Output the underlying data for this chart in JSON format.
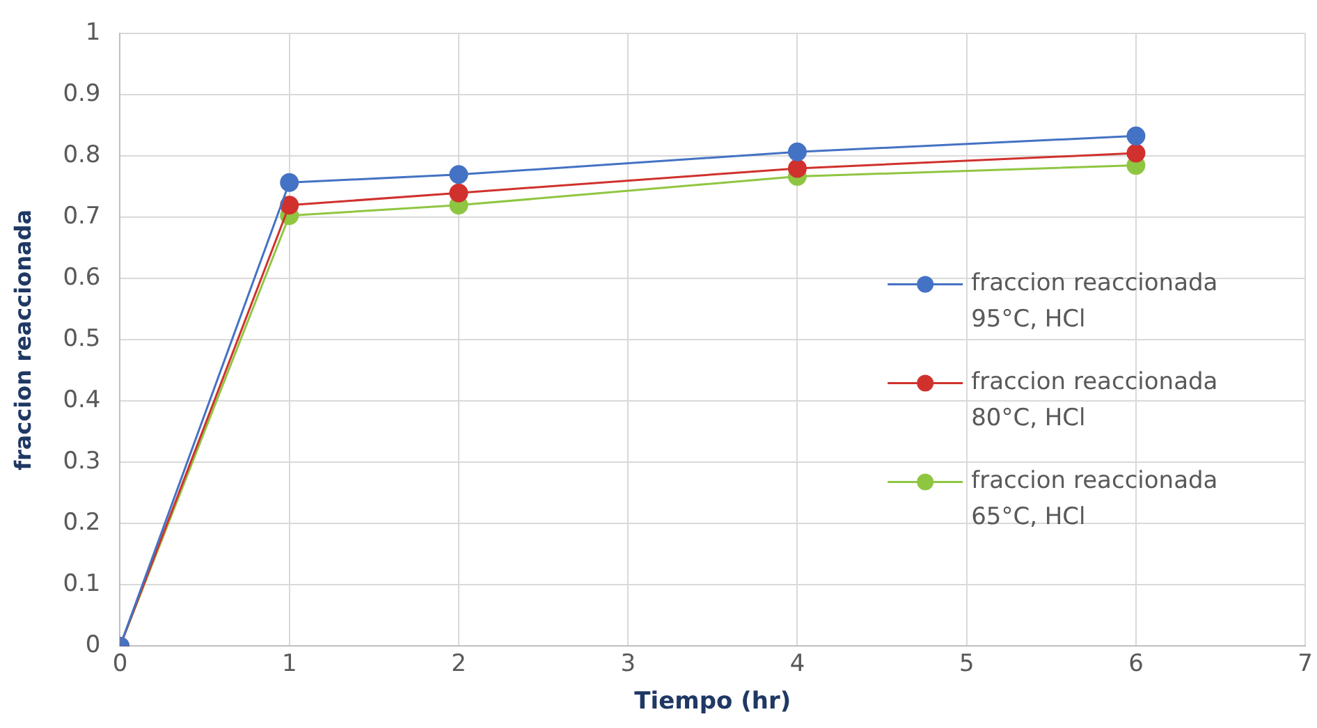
{
  "chart_data": {
    "type": "line",
    "xlabel": "Tiempo (hr)",
    "ylabel": "fraccion reaccionada",
    "x": [
      0,
      1,
      2,
      4,
      6
    ],
    "series": [
      {
        "name": "fraccion reaccionada 95°C, HCl",
        "color": "#4472c4",
        "values": [
          0,
          0.757,
          0.77,
          0.807,
          0.833
        ]
      },
      {
        "name": "fraccion reaccionada 80°C, HCl",
        "color": "#d0312d",
        "values": [
          0,
          0.72,
          0.74,
          0.78,
          0.805
        ]
      },
      {
        "name": "fraccion reaccionada 65°C, HCl",
        "color": "#8fc641",
        "values": [
          0,
          0.703,
          0.72,
          0.767,
          0.785
        ]
      }
    ],
    "xlim": [
      0,
      7
    ],
    "xticks": [
      0,
      1,
      2,
      3,
      4,
      5,
      6,
      7
    ],
    "ylim": [
      0,
      1
    ],
    "yticks": [
      0,
      0.1,
      0.2,
      0.3,
      0.4,
      0.5,
      0.6,
      0.7,
      0.8,
      0.9,
      1
    ],
    "grid": true,
    "legend": "right",
    "marker": "circle",
    "line_style": "solid"
  }
}
